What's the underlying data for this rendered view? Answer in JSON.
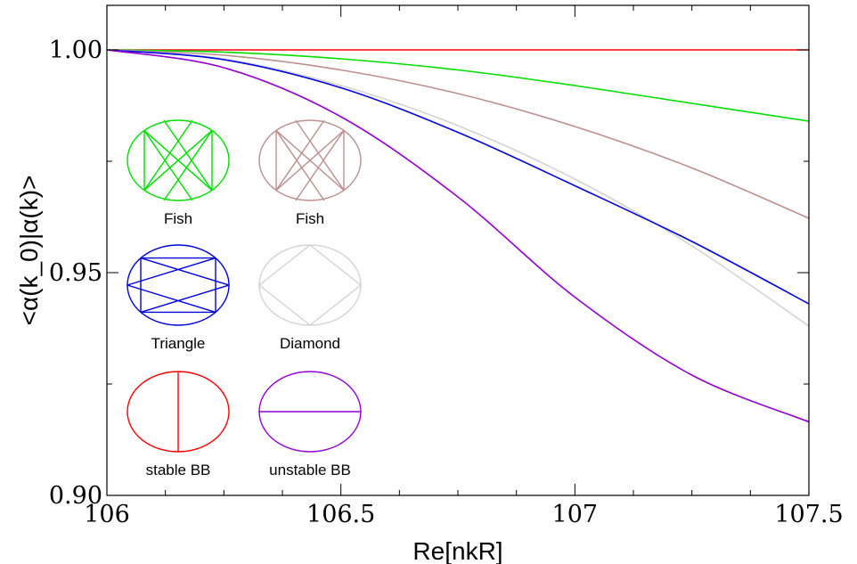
{
  "chart_data": {
    "type": "line",
    "title": "",
    "xlabel": "Re[nkR]",
    "ylabel": "<α(k_0)|α(k)>",
    "xlim": [
      106,
      107.5
    ],
    "ylim": [
      0.9,
      1.01
    ],
    "x_ticks": [
      106,
      106.5,
      107,
      107.5
    ],
    "x_tick_labels": [
      "106",
      "106.5",
      "107",
      "107.5"
    ],
    "y_ticks": [
      0.9,
      0.95,
      1.0
    ],
    "y_tick_labels": [
      "0.90",
      "0.95",
      "1.00"
    ],
    "grid": false,
    "legend": "inset orbit diagrams at left",
    "series": [
      {
        "color": "#ff0000",
        "x": [
          106,
          106.25,
          106.5,
          106.75,
          107,
          107.25,
          107.5
        ],
        "values": [
          1.0,
          1.0,
          1.0,
          1.0,
          1.0,
          1.0,
          1.0
        ]
      },
      {
        "color": "#00dd00",
        "x": [
          106,
          106.25,
          106.5,
          106.75,
          107,
          107.25,
          107.5
        ],
        "values": [
          1.0,
          0.9995,
          0.998,
          0.9955,
          0.992,
          0.988,
          0.984
        ]
      },
      {
        "color": "#bc8f8f",
        "x": [
          106,
          106.25,
          106.5,
          106.75,
          107,
          107.25,
          107.5
        ],
        "values": [
          1.0,
          0.9988,
          0.9955,
          0.9902,
          0.9828,
          0.9735,
          0.9622
        ]
      },
      {
        "color": "#d3d3d3",
        "x": [
          106,
          106.25,
          106.5,
          106.75,
          107,
          107.25,
          107.5
        ],
        "values": [
          1.0,
          0.998,
          0.992,
          0.983,
          0.971,
          0.956,
          0.938
        ]
      },
      {
        "color": "#0000dd",
        "x": [
          106,
          106.25,
          106.5,
          106.75,
          107,
          107.25,
          107.5
        ],
        "values": [
          1.0,
          0.9978,
          0.9915,
          0.9815,
          0.9695,
          0.957,
          0.943
        ]
      },
      {
        "color": "#9400d3",
        "x": [
          106,
          106.25,
          106.5,
          106.75,
          107,
          107.25,
          107.5
        ],
        "values": [
          1.0,
          0.996,
          0.985,
          0.967,
          0.9445,
          0.927,
          0.9165
        ]
      }
    ],
    "insets": [
      {
        "label": "Fish",
        "color": "#00dd00",
        "shape": "fish"
      },
      {
        "label": "Fish",
        "color": "#bc8f8f",
        "shape": "fish"
      },
      {
        "label": "Triangle",
        "color": "#0000dd",
        "shape": "triangle"
      },
      {
        "label": "Diamond",
        "color": "#d3d3d3",
        "shape": "diamond"
      },
      {
        "label": "stable BB",
        "color": "#ff0000",
        "shape": "stable"
      },
      {
        "label": "unstable BB",
        "color": "#9400d3",
        "shape": "unstable"
      }
    ]
  }
}
